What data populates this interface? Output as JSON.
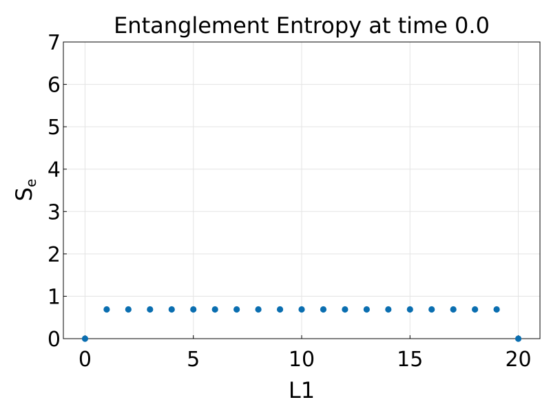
{
  "chart_data": {
    "type": "scatter",
    "title": "Entanglement Entropy at time 0.0",
    "xlabel": "L1",
    "ylabel_main": "S",
    "ylabel_sub": "e",
    "xlim": [
      -1,
      21
    ],
    "ylim": [
      0,
      7
    ],
    "xticks": [
      0,
      5,
      10,
      15,
      20
    ],
    "yticks": [
      0,
      1,
      2,
      3,
      4,
      5,
      6,
      7
    ],
    "grid": true,
    "marker_color": "#0a6eb0",
    "points": [
      {
        "x": 0,
        "y": 0.0
      },
      {
        "x": 1,
        "y": 0.69
      },
      {
        "x": 2,
        "y": 0.69
      },
      {
        "x": 3,
        "y": 0.69
      },
      {
        "x": 4,
        "y": 0.69
      },
      {
        "x": 5,
        "y": 0.69
      },
      {
        "x": 6,
        "y": 0.69
      },
      {
        "x": 7,
        "y": 0.69
      },
      {
        "x": 8,
        "y": 0.69
      },
      {
        "x": 9,
        "y": 0.69
      },
      {
        "x": 10,
        "y": 0.69
      },
      {
        "x": 11,
        "y": 0.69
      },
      {
        "x": 12,
        "y": 0.69
      },
      {
        "x": 13,
        "y": 0.69
      },
      {
        "x": 14,
        "y": 0.69
      },
      {
        "x": 15,
        "y": 0.69
      },
      {
        "x": 16,
        "y": 0.69
      },
      {
        "x": 17,
        "y": 0.69
      },
      {
        "x": 18,
        "y": 0.69
      },
      {
        "x": 19,
        "y": 0.69
      },
      {
        "x": 20,
        "y": 0.0
      }
    ]
  }
}
